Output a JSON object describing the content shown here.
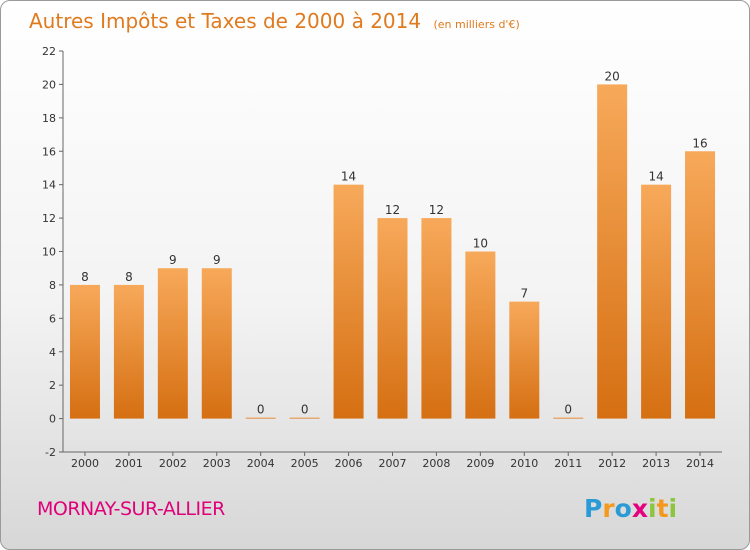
{
  "chart_data": {
    "type": "bar",
    "title": "Autres Impôts et Taxes de 2000 à 2014",
    "subtitle": "(en milliers d'€)",
    "categories": [
      "2000",
      "2001",
      "2002",
      "2003",
      "2004",
      "2005",
      "2006",
      "2007",
      "2008",
      "2009",
      "2010",
      "2011",
      "2012",
      "2013",
      "2014"
    ],
    "values": [
      8,
      8,
      9,
      9,
      0,
      0,
      14,
      12,
      12,
      10,
      7,
      0,
      20,
      14,
      16
    ],
    "ylim": [
      -2,
      22
    ],
    "yticks": [
      -2,
      0,
      2,
      4,
      6,
      8,
      10,
      12,
      14,
      16,
      18,
      20,
      22
    ],
    "grid": false,
    "bar_color": "#f08b2e",
    "bar_color_light": "#f7a95a",
    "bar_color_dark": "#d56f12"
  },
  "footer": {
    "location": "MORNAY-SUR-ALLIER",
    "location_color": "#e0007a",
    "brand": "Proxiti"
  }
}
